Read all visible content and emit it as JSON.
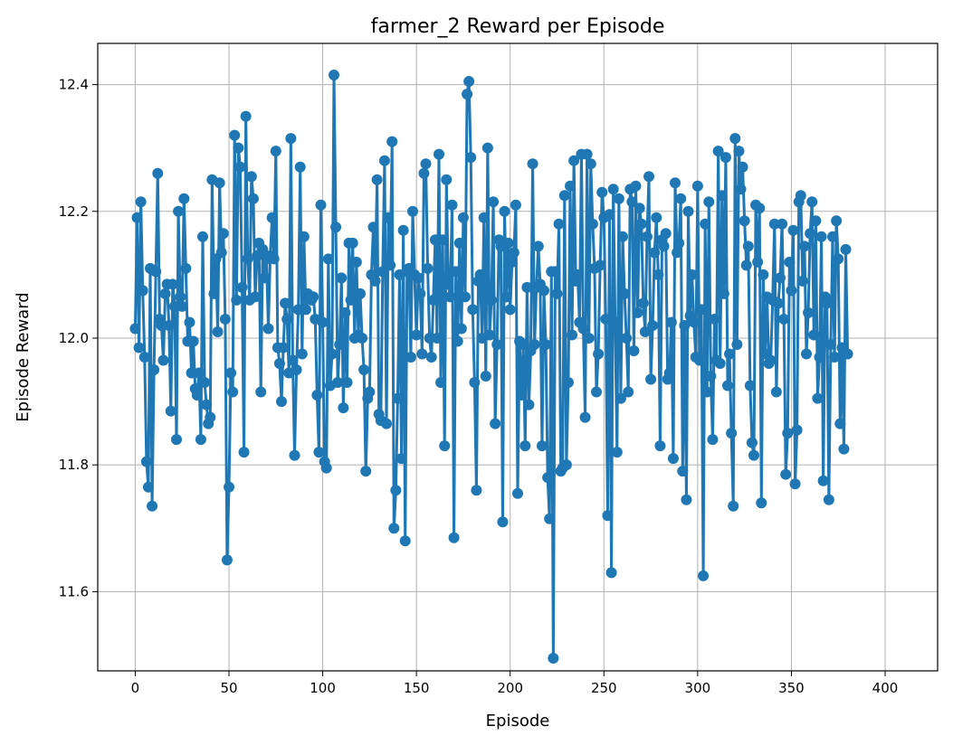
{
  "chart_data": {
    "type": "line",
    "title": "farmer_2 Reward per Episode",
    "xlabel": "Episode",
    "ylabel": "Episode Reward",
    "xlim": [
      -20,
      428
    ],
    "ylim": [
      11.475,
      12.465
    ],
    "xticks": [
      0,
      50,
      100,
      150,
      200,
      250,
      300,
      350,
      400
    ],
    "yticks": [
      11.6,
      11.8,
      12.0,
      12.2,
      12.4
    ],
    "grid": true,
    "legend": "none",
    "color": "#1f77b4",
    "series": [
      {
        "values": [
          12.015,
          12.19,
          11.985,
          12.215,
          12.075,
          11.97,
          11.805,
          11.765,
          12.11,
          11.735,
          11.95,
          12.105,
          12.26,
          12.03,
          12.02,
          11.965,
          12.07,
          12.085,
          12.02,
          11.885,
          12.085,
          12.05,
          11.84,
          12.2,
          12.065,
          12.05,
          12.22,
          12.11,
          11.995,
          12.025,
          11.945,
          11.995,
          11.92,
          11.91,
          11.945,
          11.84,
          12.16,
          11.93,
          11.895,
          11.865,
          11.875,
          12.25,
          12.07,
          12.125,
          12.01,
          12.245,
          12.135,
          12.165,
          12.03,
          11.65,
          11.765,
          11.945,
          11.915,
          12.32,
          12.06,
          12.3,
          12.27,
          12.08,
          11.82,
          12.35,
          12.125,
          12.06,
          12.255,
          12.22,
          12.065,
          12.13,
          12.15,
          11.915,
          12.14,
          12.095,
          12.125,
          12.015,
          12.13,
          12.19,
          12.125,
          12.295,
          11.985,
          11.96,
          11.9,
          11.985,
          12.055,
          12.03,
          11.945,
          12.315,
          11.965,
          11.815,
          11.95,
          12.045,
          12.27,
          11.975,
          12.16,
          12.045,
          12.07,
          12.065,
          12.06,
          12.065,
          12.03,
          11.91,
          11.82,
          12.21,
          12.025,
          11.805,
          11.795,
          12.125,
          11.925,
          11.975,
          12.415,
          12.175,
          11.93,
          11.99,
          12.095,
          11.89,
          12.04,
          11.93,
          12.15,
          12.06,
          12.15,
          12.0,
          12.12,
          12.005,
          12.07,
          12.0,
          11.95,
          11.79,
          11.905,
          11.915,
          12.1,
          12.175,
          12.09,
          12.25,
          11.88,
          11.87,
          12.105,
          12.28,
          11.865,
          12.19,
          12.115,
          12.31,
          11.7,
          11.76,
          11.905,
          12.1,
          11.81,
          12.17,
          11.68,
          12.105,
          12.11,
          11.97,
          12.2,
          12.1,
          12.005,
          12.095,
          12.07,
          11.975,
          12.26,
          12.275,
          12.11,
          12.0,
          11.97,
          12.06,
          12.155,
          12.0,
          12.29,
          11.93,
          12.155,
          11.83,
          12.25,
          12.085,
          12.065,
          12.21,
          11.685,
          12.105,
          11.995,
          12.15,
          12.015,
          12.19,
          12.065,
          12.385,
          12.405,
          12.285,
          12.045,
          11.93,
          11.76,
          12.09,
          12.1,
          12.0,
          12.19,
          11.94,
          12.3,
          12.005,
          12.06,
          12.215,
          11.865,
          11.99,
          12.155,
          12.145,
          11.71,
          12.2,
          12.065,
          12.15,
          12.045,
          12.12,
          12.135,
          12.21,
          11.755,
          11.995,
          11.91,
          11.99,
          11.83,
          12.08,
          11.895,
          11.98,
          12.275,
          11.99,
          12.08,
          12.145,
          12.085,
          11.83,
          12.075,
          11.99,
          11.78,
          11.715,
          12.105,
          11.495,
          12.105,
          12.07,
          12.18,
          11.79,
          11.795,
          12.225,
          11.8,
          11.93,
          12.24,
          12.005,
          12.28,
          12.09,
          12.1,
          12.025,
          12.29,
          12.015,
          11.875,
          12.29,
          12.0,
          12.275,
          12.18,
          12.11,
          11.915,
          11.975,
          12.115,
          12.23,
          12.19,
          12.03,
          11.72,
          12.195,
          11.63,
          12.235,
          12.025,
          11.82,
          12.22,
          11.905,
          12.16,
          12.07,
          12.0,
          11.915,
          12.235,
          12.215,
          11.98,
          12.24,
          12.04,
          12.205,
          12.18,
          12.055,
          12.01,
          12.16,
          12.255,
          11.935,
          12.02,
          12.135,
          12.19,
          12.1,
          11.83,
          12.155,
          12.145,
          12.165,
          11.935,
          11.945,
          12.025,
          11.81,
          12.245,
          12.135,
          12.15,
          12.22,
          11.79,
          12.02,
          11.745,
          12.2,
          12.035,
          12.1,
          12.025,
          11.97,
          12.24,
          11.965,
          12.045,
          11.625,
          12.18,
          11.915,
          12.215,
          11.94,
          11.84,
          12.03,
          11.965,
          12.295,
          11.96,
          12.225,
          12.07,
          12.285,
          11.925,
          11.975,
          11.85,
          11.735,
          12.315,
          11.99,
          12.295,
          12.235,
          12.27,
          12.185,
          12.115,
          12.145,
          11.925,
          11.835,
          11.815,
          12.21,
          12.12,
          12.205,
          11.74,
          12.1,
          11.975,
          12.065,
          11.96,
          11.965,
          12.06,
          12.18,
          11.915,
          12.055,
          12.095,
          12.18,
          12.03,
          11.785,
          11.85,
          12.12,
          12.075,
          12.17,
          11.77,
          11.855,
          12.215,
          12.225,
          12.09,
          12.145,
          11.975,
          12.04,
          12.165,
          12.215,
          12.005,
          12.185,
          11.905,
          11.97,
          12.16,
          11.775,
          12.065,
          12.055,
          11.745,
          11.99,
          12.16,
          11.97,
          12.185,
          12.125,
          11.865,
          11.985,
          11.825,
          12.14,
          11.975
        ]
      }
    ]
  }
}
